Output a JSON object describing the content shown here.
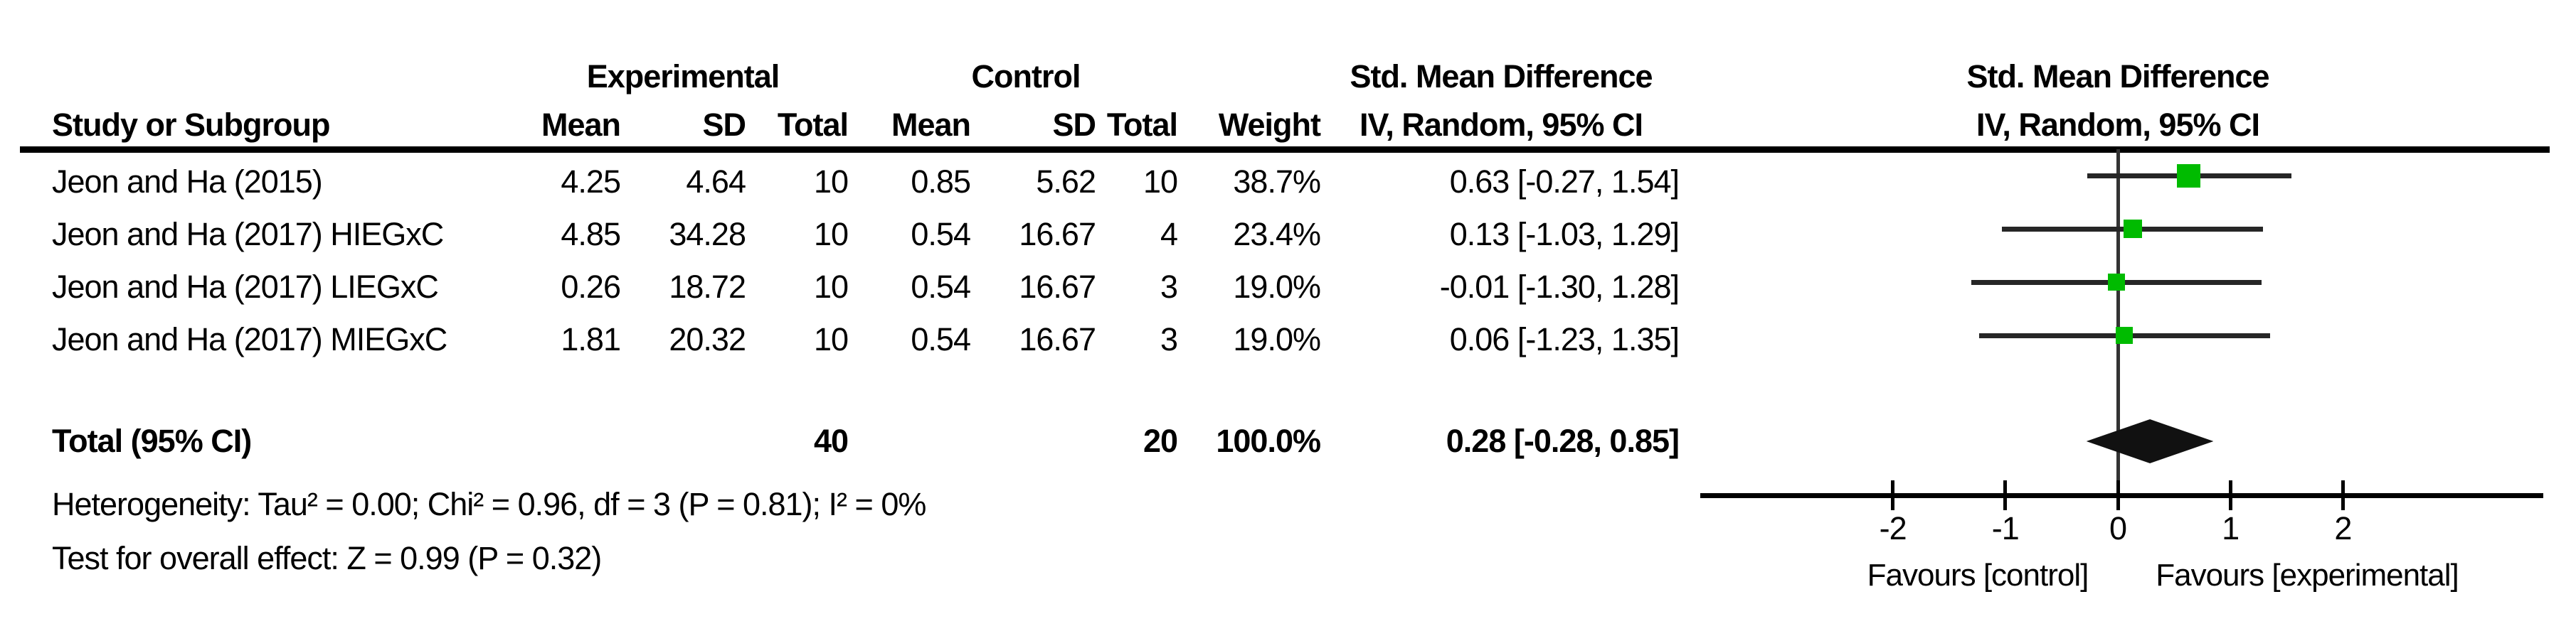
{
  "header": {
    "experimental": "Experimental",
    "control": "Control",
    "smd_left": "Std. Mean Difference",
    "smd_right": "Std. Mean Difference",
    "study_col": "Study or Subgroup",
    "exp_mean_col": "Mean",
    "exp_sd_col": "SD",
    "exp_total_col": "Total",
    "ctrl_mean_col": "Mean",
    "ctrl_sd_col": "SD",
    "ctrl_total_col": "Total",
    "weight_col": "Weight",
    "method_col_left": "IV, Random, 95% CI",
    "method_col_right": "IV, Random, 95% CI"
  },
  "table": {
    "rows": [
      {
        "study": "Jeon and Ha (2015)",
        "exp_mean": "4.25",
        "exp_sd": "4.64",
        "exp_total": "10",
        "ctrl_mean": "0.85",
        "ctrl_sd": "5.62",
        "ctrl_total": "10",
        "weight": "38.7%",
        "ci": "0.63 [-0.27, 1.54]"
      },
      {
        "study": "Jeon and Ha (2017) HIEGxC",
        "exp_mean": "4.85",
        "exp_sd": "34.28",
        "exp_total": "10",
        "ctrl_mean": "0.54",
        "ctrl_sd": "16.67",
        "ctrl_total": "4",
        "weight": "23.4%",
        "ci": "0.13 [-1.03, 1.29]"
      },
      {
        "study": "Jeon and Ha (2017) LIEGxC",
        "exp_mean": "0.26",
        "exp_sd": "18.72",
        "exp_total": "10",
        "ctrl_mean": "0.54",
        "ctrl_sd": "16.67",
        "ctrl_total": "3",
        "weight": "19.0%",
        "ci": "-0.01 [-1.30, 1.28]"
      },
      {
        "study": "Jeon and Ha (2017) MIEGxC",
        "exp_mean": "1.81",
        "exp_sd": "20.32",
        "exp_total": "10",
        "ctrl_mean": "0.54",
        "ctrl_sd": "16.67",
        "ctrl_total": "3",
        "weight": "19.0%",
        "ci": "0.06 [-1.23, 1.35]"
      }
    ],
    "total_row": {
      "label": "Total (95% CI)",
      "exp_total": "40",
      "ctrl_total": "20",
      "weight": "100.0%",
      "ci": "0.28 [-0.28, 0.85]"
    },
    "heterogeneity": "Heterogeneity: Tau² = 0.00; Chi² = 0.96, df = 3 (P = 0.81); I² = 0%",
    "overall_effect": "Test for overall effect: Z = 0.99 (P = 0.32)"
  },
  "chart_data": {
    "type": "scatter",
    "subtype": "forest-plot",
    "title": "Std. Mean Difference — IV, Random, 95% CI",
    "studies": [
      {
        "name": "Jeon and Ha (2015)",
        "estimate": 0.63,
        "ci_low": -0.27,
        "ci_high": 1.54,
        "weight_pct": 38.7
      },
      {
        "name": "Jeon and Ha (2017) HIEGxC",
        "estimate": 0.13,
        "ci_low": -1.03,
        "ci_high": 1.29,
        "weight_pct": 23.4
      },
      {
        "name": "Jeon and Ha (2017) LIEGxC",
        "estimate": -0.01,
        "ci_low": -1.3,
        "ci_high": 1.28,
        "weight_pct": 19.0
      },
      {
        "name": "Jeon and Ha (2017) MIEGxC",
        "estimate": 0.06,
        "ci_low": -1.23,
        "ci_high": 1.35,
        "weight_pct": 19.0
      }
    ],
    "total": {
      "name": "Total (95% CI)",
      "estimate": 0.28,
      "ci_low": -0.28,
      "ci_high": 0.85,
      "weight_pct": 100.0
    },
    "axis": {
      "tick_values": [
        -2,
        -1,
        0,
        1,
        2
      ],
      "tick_labels": [
        "-2",
        "-1",
        "0",
        "1",
        "2"
      ],
      "xlim": [
        -3.7,
        3.8
      ],
      "grid": false,
      "xlabel_left": "Favours [control]",
      "xlabel_right": "Favours [experimental]"
    },
    "marker_color": "#00BB00",
    "diamond_color": "#111111"
  }
}
